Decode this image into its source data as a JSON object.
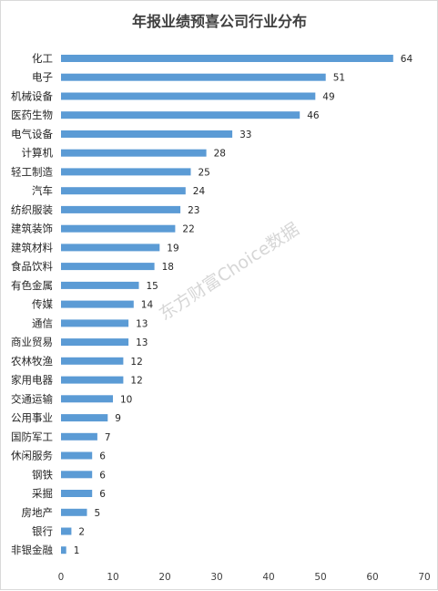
{
  "chart_data": {
    "type": "bar",
    "orientation": "horizontal",
    "title": "年报业绩预喜公司行业分布",
    "categories": [
      "化工",
      "电子",
      "机械设备",
      "医药生物",
      "电气设备",
      "计算机",
      "轻工制造",
      "汽车",
      "纺织服装",
      "建筑装饰",
      "建筑材料",
      "食品饮料",
      "有色金属",
      "传媒",
      "通信",
      "商业贸易",
      "农林牧渔",
      "家用电器",
      "交通运输",
      "公用事业",
      "国防军工",
      "休闲服务",
      "钢铁",
      "采掘",
      "房地产",
      "银行",
      "非银金融"
    ],
    "values": [
      64,
      51,
      49,
      46,
      33,
      28,
      25,
      24,
      23,
      22,
      19,
      18,
      15,
      14,
      13,
      13,
      12,
      12,
      10,
      9,
      7,
      6,
      6,
      6,
      5,
      2,
      1
    ],
    "xlim": [
      0,
      70
    ],
    "xticks": [
      0,
      10,
      20,
      30,
      40,
      50,
      60,
      70
    ],
    "bar_color": "#5b9bd5",
    "grid": false,
    "data_labels": true
  },
  "watermark": "东方财富Choice数据"
}
